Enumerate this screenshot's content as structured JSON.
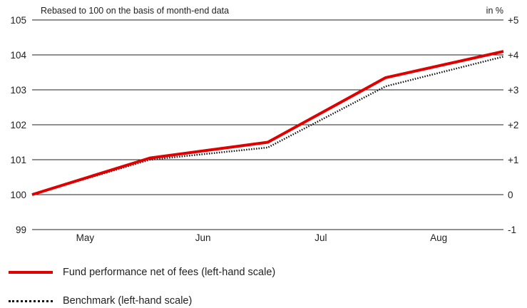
{
  "chart_data": {
    "type": "line",
    "subtitle": "Rebased to 100 on the basis of month-end data",
    "right_axis_title": "in %",
    "categories": [
      "May",
      "Jun",
      "Jul",
      "Aug"
    ],
    "x": [
      0,
      1,
      2,
      3,
      4
    ],
    "ylim_left": [
      99,
      105
    ],
    "yticks_left": [
      "99",
      "100",
      "101",
      "102",
      "103",
      "104",
      "105"
    ],
    "ylim_right": [
      -1,
      5
    ],
    "yticks_right": [
      "-1",
      "0",
      "+1",
      "+2",
      "+3",
      "+4",
      "+5"
    ],
    "grid": true,
    "series": [
      {
        "name": "Fund performance net of fees (left-hand scale)",
        "values": [
          100.0,
          101.05,
          101.5,
          103.35,
          104.1
        ],
        "color": "#e00000",
        "style": "solid"
      },
      {
        "name": "Benchmark (left-hand scale)",
        "values": [
          100.0,
          101.0,
          101.35,
          103.1,
          103.95
        ],
        "color": "#111111",
        "style": "dotted"
      }
    ]
  },
  "legend": {
    "fund_label": "Fund performance net of fees (left-hand scale)",
    "benchmark_label": "Benchmark (left-hand scale)"
  }
}
